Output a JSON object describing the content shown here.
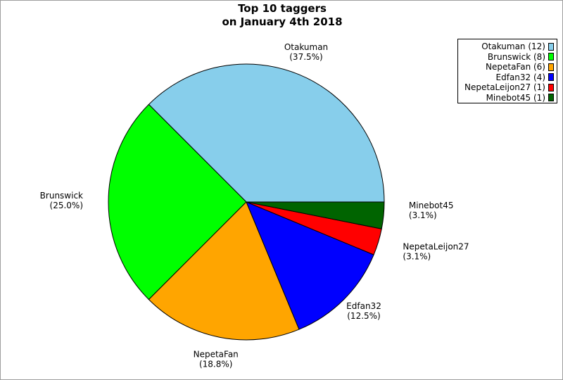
{
  "chart_data": {
    "type": "pie",
    "title": [
      "Top 10 taggers",
      "on January 4th 2018"
    ],
    "slices": [
      {
        "name": "Otakuman",
        "value": 12,
        "percent": "37.5%",
        "legend": "Otakuman (12)",
        "color": "#87ceeb"
      },
      {
        "name": "Brunswick",
        "value": 8,
        "percent": "25.0%",
        "legend": "Brunswick (8)",
        "color": "#00ff00"
      },
      {
        "name": "NepetaFan",
        "value": 6,
        "percent": "18.8%",
        "legend": "NepetaFan (6)",
        "color": "#ffa500"
      },
      {
        "name": "Edfan32",
        "value": 4,
        "percent": "12.5%",
        "legend": "Edfan32 (4)",
        "color": "#0000ff"
      },
      {
        "name": "NepetaLeijon27",
        "value": 1,
        "percent": "3.1%",
        "legend": "NepetaLeijon27 (1)",
        "color": "#ff0000"
      },
      {
        "name": "Minebot45",
        "value": 1,
        "percent": "3.1%",
        "legend": "Minebot45 (1)",
        "color": "#006400"
      }
    ],
    "start_angle_deg": 0,
    "direction": "counterclockwise",
    "legend_position": "top-right"
  }
}
